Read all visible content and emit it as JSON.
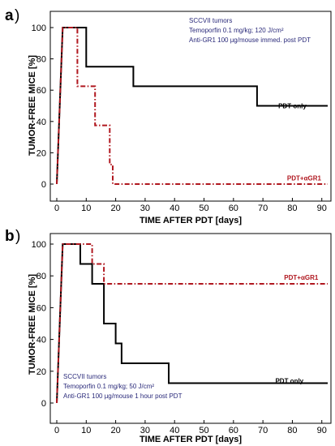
{
  "chart_data": [
    {
      "type": "line",
      "panel_label": "a",
      "xlabel": "TIME AFTER PDT [days]",
      "ylabel": "TUMOR-FREE MICE [%]",
      "xlim": [
        0,
        92
      ],
      "ylim": [
        0,
        100
      ],
      "xticks": [
        0,
        10,
        20,
        30,
        40,
        50,
        60,
        70,
        80,
        90
      ],
      "yticks": [
        0,
        20,
        40,
        60,
        80,
        100
      ],
      "annotation_lines": [
        "SCCVII tumors",
        "Temoporfin 0.1 mg/kg; 120 J/cm²",
        "Anti-GR1 100 µg/mouse immed. post PDT"
      ],
      "series": [
        {
          "name": "PDT only",
          "color": "#000000",
          "style": "solid",
          "label_at": [
            80,
            50
          ],
          "x": [
            0,
            2,
            10,
            10,
            26,
            26,
            68,
            68,
            92
          ],
          "y": [
            0,
            100,
            100,
            75,
            75,
            62.5,
            62.5,
            50,
            50
          ]
        },
        {
          "name": "PDT+αGR1",
          "color": "#b0171f",
          "style": "dashdot",
          "label_at": [
            84,
            4
          ],
          "x": [
            0,
            2,
            7,
            7,
            13,
            13,
            18,
            18,
            19,
            19,
            92
          ],
          "y": [
            0,
            100,
            100,
            62.5,
            62.5,
            37.5,
            37.5,
            12.5,
            12.5,
            0,
            0
          ]
        }
      ]
    },
    {
      "type": "line",
      "panel_label": "b",
      "xlabel": "TIME AFTER PDT [days]",
      "ylabel": "TUMOR-FREE MICE [%]",
      "xlim": [
        0,
        92
      ],
      "ylim": [
        0,
        100
      ],
      "xticks": [
        0,
        10,
        20,
        30,
        40,
        50,
        60,
        70,
        80,
        90
      ],
      "yticks": [
        0,
        20,
        40,
        60,
        80,
        100
      ],
      "annotation_lines": [
        "SCCVII tumors",
        "Temoporfin 0.1 mg/kg; 50 J/cm²",
        "Anti-GR1 100 µg/mouse 1 hour post PDT"
      ],
      "series": [
        {
          "name": "PDT only",
          "color": "#000000",
          "style": "solid",
          "label_at": [
            79,
            14
          ],
          "x": [
            0,
            2,
            8,
            8,
            12,
            12,
            16,
            16,
            20,
            20,
            22,
            22,
            24,
            24,
            38,
            38,
            92
          ],
          "y": [
            0,
            100,
            100,
            87.5,
            87.5,
            75,
            75,
            50,
            50,
            37.5,
            37.5,
            25,
            25,
            25,
            25,
            12.5,
            12.5
          ]
        },
        {
          "name": "PDT+αGR1",
          "color": "#b0171f",
          "style": "dashdot",
          "label_at": [
            83,
            79
          ],
          "x": [
            0,
            2,
            12,
            12,
            16,
            16,
            92
          ],
          "y": [
            0,
            100,
            100,
            87.5,
            87.5,
            75,
            75
          ]
        }
      ]
    }
  ]
}
